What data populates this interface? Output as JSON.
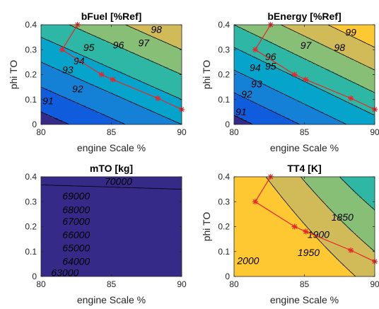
{
  "colors": {
    "levels": [
      "#352a87",
      "#0f5cdd",
      "#1481d6",
      "#06a4ca",
      "#2eb7a4",
      "#87bf77",
      "#d1bb59",
      "#fec832",
      "#f9fb0e"
    ],
    "route": "#e8262a",
    "contour": "#000000"
  },
  "chart_data": [
    {
      "id": "bfuel",
      "type": "contour",
      "title": "bFuel [%Ref]",
      "xlabel": "engine Scale %",
      "ylabel": "phi TO",
      "xlim": [
        80,
        90
      ],
      "ylim": [
        0,
        0.4
      ],
      "xticks": [
        "80",
        "85",
        "90"
      ],
      "yticks": [
        "0",
        "0.1",
        "0.2",
        "0.3",
        "0.4"
      ],
      "field": {
        "c0": 97,
        "cx": 0.25,
        "cy": 10,
        "cxx": 0,
        "cxy": 0
      },
      "levels": [
        90,
        91,
        92,
        93,
        94,
        95,
        96,
        97,
        98
      ],
      "level_labels": [
        {
          "text": "91",
          "x": 80.5,
          "y": 0.092
        },
        {
          "text": "92",
          "x": 82.6,
          "y": 0.139
        },
        {
          "text": "93",
          "x": 81.9,
          "y": 0.216
        },
        {
          "text": "94",
          "x": 82.7,
          "y": 0.252
        },
        {
          "text": "95",
          "x": 83.4,
          "y": 0.305
        },
        {
          "text": "96",
          "x": 85.5,
          "y": 0.315
        },
        {
          "text": "97",
          "x": 87.3,
          "y": 0.324
        },
        {
          "text": "98",
          "x": 88.2,
          "y": 0.378
        }
      ],
      "route": {
        "x": [
          82.6,
          81.5,
          84.3,
          85.1,
          88.3,
          90
        ],
        "y": [
          0.4,
          0.3,
          0.2,
          0.18,
          0.105,
          0.06
        ]
      }
    },
    {
      "id": "benergy",
      "type": "contour",
      "title": "bEnergy [%Ref]",
      "xlabel": "engine Scale %",
      "ylabel": "phi TO",
      "xlim": [
        80,
        90
      ],
      "ylim": [
        0,
        0.4
      ],
      "xticks": [
        "80",
        "85",
        "90"
      ],
      "yticks": [
        "0",
        "0.1",
        "0.2",
        "0.3",
        "0.4"
      ],
      "field": {
        "c0": 98,
        "cx": 0.3,
        "cy": 11,
        "cxx": 0,
        "cxy": 0
      },
      "levels": [
        90,
        91,
        92,
        93,
        94,
        95,
        96,
        97,
        98,
        99
      ],
      "level_labels": [
        {
          "text": "91",
          "x": 80.5,
          "y": 0.048
        },
        {
          "text": "92",
          "x": 80.9,
          "y": 0.118
        },
        {
          "text": "93",
          "x": 81.6,
          "y": 0.16
        },
        {
          "text": "94",
          "x": 81.5,
          "y": 0.225
        },
        {
          "text": "95",
          "x": 82.6,
          "y": 0.23
        },
        {
          "text": "96",
          "x": 82.6,
          "y": 0.268
        },
        {
          "text": "97",
          "x": 85.1,
          "y": 0.314
        },
        {
          "text": "98",
          "x": 87.5,
          "y": 0.305
        },
        {
          "text": "99",
          "x": 88.3,
          "y": 0.366
        }
      ],
      "route": {
        "x": [
          82.6,
          81.5,
          84.3,
          85.1,
          88.3,
          90
        ],
        "y": [
          0.4,
          0.3,
          0.2,
          0.18,
          0.105,
          0.06
        ]
      }
    },
    {
      "id": "mto",
      "type": "contour",
      "title": "mTO [kg]",
      "xlabel": "engine Scale %",
      "ylabel": "",
      "xlim": [
        80,
        90
      ],
      "ylim": [
        0,
        0.4
      ],
      "xticks": [
        "80",
        "85",
        "90"
      ],
      "yticks": [
        "0",
        "0.1",
        "0.2",
        "0.3",
        "0.4"
      ],
      "field": {
        "c0": 63000,
        "cx": 35,
        "cy": 20000,
        "cxx": 0,
        "cxy": 0
      },
      "levels": [
        62000,
        63000,
        64000,
        65000,
        66000,
        67000,
        68000,
        69000,
        70000,
        71000
      ],
      "level_labels": [
        {
          "text": "63000",
          "x": 81.7,
          "y": 0.012
        },
        {
          "text": "64000",
          "x": 82.5,
          "y": 0.058
        },
        {
          "text": "65000",
          "x": 82.5,
          "y": 0.111
        },
        {
          "text": "66000",
          "x": 82.5,
          "y": 0.163
        },
        {
          "text": "67000",
          "x": 82.5,
          "y": 0.217
        },
        {
          "text": "68000",
          "x": 82.5,
          "y": 0.265
        },
        {
          "text": "69000",
          "x": 82.5,
          "y": 0.32
        },
        {
          "text": "70000",
          "x": 85.5,
          "y": 0.378
        }
      ]
    },
    {
      "id": "tt4",
      "type": "contour",
      "title": "TT4 [K]",
      "xlabel": "engine Scale %",
      "ylabel": "phi TO",
      "xlim": [
        80,
        90
      ],
      "ylim": [
        0,
        0.4
      ],
      "xticks": [
        "80",
        "85",
        "90"
      ],
      "yticks": [
        "0",
        "0.1",
        "0.2",
        "0.3",
        "0.4"
      ],
      "field": {
        "c0": 1960,
        "cx": -15,
        "cy": -300,
        "cxx": 0.4,
        "cxy": -2
      },
      "levels": [
        1750,
        1800,
        1850,
        1900,
        1950,
        2000,
        2050,
        2100
      ],
      "level_labels": [
        {
          "text": "1850",
          "x": 87.7,
          "y": 0.235
        },
        {
          "text": "1900",
          "x": 86.0,
          "y": 0.165
        },
        {
          "text": "1950",
          "x": 85.3,
          "y": 0.093
        },
        {
          "text": "2000",
          "x": 81.0,
          "y": 0.06
        }
      ],
      "route": {
        "x": [
          82.6,
          81.5,
          84.3,
          85.1,
          88.3,
          90
        ],
        "y": [
          0.4,
          0.3,
          0.2,
          0.18,
          0.105,
          0.06
        ]
      }
    }
  ]
}
